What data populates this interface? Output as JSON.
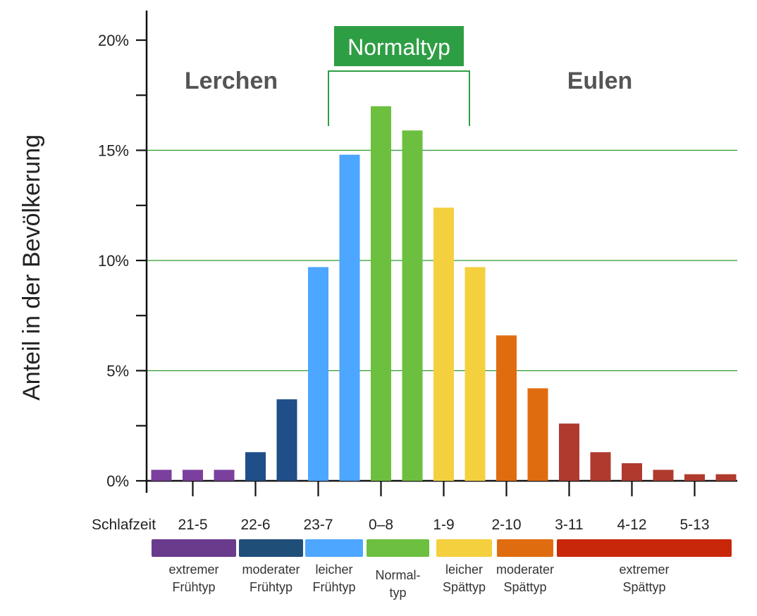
{
  "chart_data": {
    "type": "bar",
    "ylabel": "Anteil in der Bevölkerung",
    "ylim": [
      0,
      21
    ],
    "y_ticks": [
      "0%",
      "5%",
      "10%",
      "15%",
      "20%"
    ],
    "y_tick_values": [
      0,
      5,
      10,
      15,
      20
    ],
    "grid": "horizontal at 5%, 10%, 15%",
    "values": [
      0.5,
      0.5,
      0.5,
      1.3,
      3.7,
      9.7,
      14.8,
      17.0,
      15.9,
      12.4,
      9.7,
      6.6,
      4.2,
      2.6,
      1.3,
      0.8,
      0.5,
      0.3,
      0.3
    ],
    "bar_colors": [
      "#7b3f9e",
      "#7b3f9e",
      "#7b3f9e",
      "#1f4e89",
      "#1f4e89",
      "#4da6ff",
      "#4da6ff",
      "#6cbf3f",
      "#6cbf3f",
      "#f4d03f",
      "#f4d03f",
      "#e06c10",
      "#e06c10",
      "#b03a2e",
      "#b03a2e",
      "#b03a2e",
      "#b03a2e",
      "#b03a2e",
      "#b03a2e"
    ],
    "x_prefix": "Schlafzeit",
    "x_tick_labels": [
      "21-5",
      "22-6",
      "23-7",
      "0–8",
      "1-9",
      "2-10",
      "3-11",
      "4-12",
      "5-13"
    ],
    "chronotypes": [
      {
        "line1": "extremer",
        "line2": "Frühtyp",
        "color": "#6a3a8c"
      },
      {
        "line1": "moderater",
        "line2": "Frühtyp",
        "color": "#1f4e79"
      },
      {
        "line1": "leicher",
        "line2": "Frühtyp",
        "color": "#4da6ff"
      },
      {
        "line1": "Normal-",
        "line2": "typ",
        "color": "#6cbf3f"
      },
      {
        "line1": "leicher",
        "line2": "Spättyp",
        "color": "#f4d03f"
      },
      {
        "line1": "moderater",
        "line2": "Spättyp",
        "color": "#e06c10"
      },
      {
        "line1": "extremer",
        "line2": "Spättyp",
        "color": "#c8270a"
      }
    ],
    "annotations": {
      "left_group": "Lerchen",
      "right_group": "Eulen",
      "normal_group": "Normaltyp",
      "normal_color": "#2e9e44"
    },
    "grid_color": "#2a9a2a"
  }
}
